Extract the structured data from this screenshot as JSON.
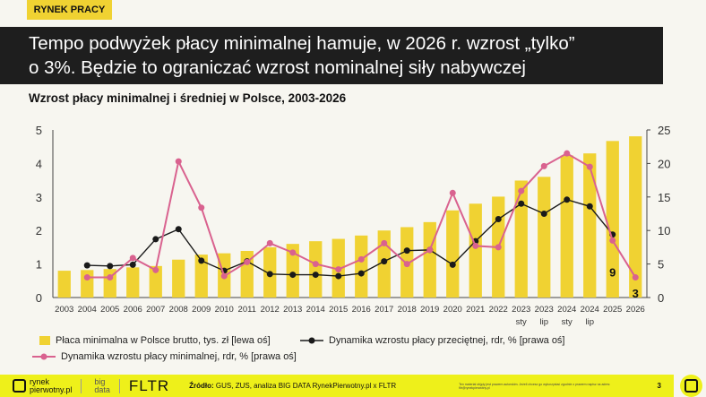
{
  "tag": "RYNEK PRACY",
  "title_line1": "Tempo podwyżek płacy minimalnej hamuje, w 2026 r. wzrost „tylko”",
  "title_line2": "o 3%. Będzie to ograniczać wzrost nominalnej siły nabywczej",
  "footer": {
    "brand1": "rynek",
    "brand2": "pierwotny.pl",
    "brand3a": "big",
    "brand3b": "data",
    "brand4": "FLTR",
    "source_label": "Źródło:",
    "source": " GUS, ZUS, analiza BIG DATA RynekPierwotny.pl x FLTR",
    "notice": "Ten materiał objęty jest prawem autorskim. Jeżeli chcesz go wykorzystać zgodnie z prawem napisz na adres: fltr@rynekpierwotny.pl",
    "page": "3"
  },
  "colors": {
    "bar": "#f0d232",
    "min_line": "#d9628f",
    "avg_line": "#1a1a1a",
    "accent": "#eef01a"
  },
  "chart_data": {
    "type": "bar+line",
    "title": "Wzrost płacy minimalnej i średniej w Polsce, 2003-2026",
    "categories": [
      "2003",
      "2004",
      "2005",
      "2006",
      "2007",
      "2008",
      "2009",
      "2010",
      "2011",
      "2012",
      "2013",
      "2014",
      "2015",
      "2016",
      "2017",
      "2018",
      "2019",
      "2020",
      "2021",
      "2022",
      "2023\nsty",
      "2023\nlip",
      "2024\nsty",
      "2024\nlip",
      "2025",
      "2026"
    ],
    "left_axis": {
      "ylim": [
        0,
        5
      ],
      "ticks": [
        "0",
        "1",
        "2",
        "3",
        "4",
        "5"
      ]
    },
    "right_axis": {
      "ylim": [
        0,
        25
      ],
      "ticks": [
        "0",
        "5",
        "10",
        "15",
        "20",
        "25"
      ]
    },
    "grid": false,
    "legend_position": "bottom",
    "series": [
      {
        "name": "Płaca minimalna w Polsce brutto, tys. zł [lewa oś]",
        "type": "bar",
        "axis": "left",
        "values": [
          0.8,
          0.82,
          0.85,
          0.9,
          0.94,
          1.13,
          1.28,
          1.32,
          1.39,
          1.5,
          1.6,
          1.68,
          1.75,
          1.85,
          2.0,
          2.1,
          2.25,
          2.6,
          2.8,
          3.01,
          3.49,
          3.6,
          4.24,
          4.3,
          4.67,
          4.81
        ]
      },
      {
        "name": "Dynamika wzrostu płacy przeciętnej, rdr, % [prawa oś]",
        "type": "line",
        "axis": "right",
        "values": [
          null,
          4.8,
          4.7,
          4.9,
          8.7,
          10.2,
          5.5,
          4.0,
          5.4,
          3.5,
          3.4,
          3.4,
          3.2,
          3.6,
          5.4,
          7.0,
          7.1,
          4.9,
          8.4,
          11.7,
          14.0,
          12.5,
          14.6,
          13.6,
          9.4,
          null
        ]
      },
      {
        "name": "Dynamika wzrostu płacy minimalnej, rdr, % [prawa oś]",
        "type": "line",
        "axis": "right",
        "values": [
          null,
          3.0,
          3.0,
          5.9,
          4.1,
          20.3,
          13.4,
          3.2,
          5.3,
          8.1,
          6.7,
          5.0,
          4.2,
          5.7,
          8.1,
          5.0,
          7.1,
          15.6,
          7.7,
          7.5,
          15.9,
          19.6,
          21.5,
          19.5,
          8.5,
          3.0
        ]
      }
    ],
    "annotations": [
      "9",
      "3"
    ]
  }
}
